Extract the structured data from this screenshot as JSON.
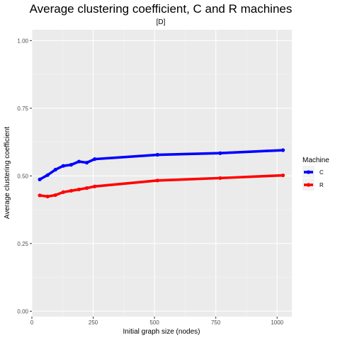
{
  "chart_data": {
    "type": "line",
    "title": "Average clustering coefficient, C and R machines",
    "subtitle": "[D]",
    "xlabel": "Initial graph size (nodes)",
    "ylabel": "Average clustering coefficient",
    "xlim": [
      0,
      1060
    ],
    "ylim": [
      -0.02,
      1.04
    ],
    "x_ticks": [
      0,
      250,
      500,
      750,
      1000
    ],
    "x_tick_labels": [
      "0",
      "250",
      "500",
      "750",
      "1000"
    ],
    "y_ticks": [
      0.0,
      0.25,
      0.5,
      0.75,
      1.0
    ],
    "y_tick_labels": [
      "0.00",
      "0.25",
      "0.50",
      "0.75",
      "1.00"
    ],
    "grid": true,
    "legend_position": "right",
    "legend_title": "Machine",
    "series": [
      {
        "name": "C",
        "color": "#0000ff",
        "x": [
          32,
          64,
          96,
          128,
          160,
          192,
          224,
          256,
          512,
          768,
          1024
        ],
        "y": [
          0.487,
          0.503,
          0.523,
          0.537,
          0.541,
          0.553,
          0.549,
          0.562,
          0.578,
          0.584,
          0.595
        ]
      },
      {
        "name": "R",
        "color": "#ff0000",
        "x": [
          32,
          64,
          96,
          128,
          160,
          192,
          224,
          256,
          512,
          768,
          1024
        ],
        "y": [
          0.428,
          0.424,
          0.429,
          0.44,
          0.445,
          0.45,
          0.455,
          0.461,
          0.483,
          0.492,
          0.502
        ]
      }
    ]
  }
}
